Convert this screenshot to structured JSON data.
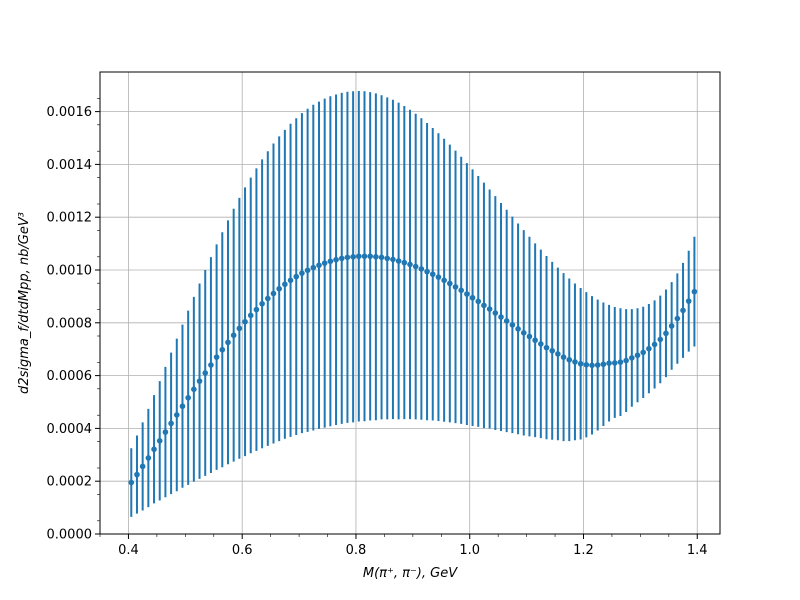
{
  "chart_data": {
    "type": "scatter",
    "title": "",
    "xlabel": "M(π⁺, π⁻), GeV",
    "ylabel": "d2sigma_f/dtdMpp, nb/GeV³",
    "xlim": [
      0.35,
      1.44
    ],
    "ylim": [
      0.0,
      0.00175
    ],
    "xticks": [
      0.4,
      0.6,
      0.8,
      1.0,
      1.2,
      1.4
    ],
    "xtick_labels": [
      "0.4",
      "0.6",
      "0.8",
      "1.0",
      "1.2",
      "1.4"
    ],
    "yticks": [
      0,
      0.0002,
      0.0004,
      0.0006,
      0.0008,
      0.001,
      0.0012,
      0.0014,
      0.0016
    ],
    "ytick_labels": [
      "0.0000",
      "0.0002",
      "0.0004",
      "0.0006",
      "0.0008",
      "0.0010",
      "0.0012",
      "0.0014",
      "0.0016"
    ],
    "grid": true,
    "color": "#1f77b4",
    "series": [
      {
        "x": [
          0.405,
          0.415,
          0.425,
          0.435,
          0.445,
          0.455,
          0.465,
          0.475,
          0.485,
          0.495,
          0.505,
          0.515,
          0.525,
          0.535,
          0.545,
          0.555,
          0.565,
          0.575,
          0.585,
          0.595,
          0.605,
          0.615,
          0.625,
          0.635,
          0.645,
          0.655,
          0.665,
          0.675,
          0.685,
          0.695,
          0.705,
          0.715,
          0.725,
          0.735,
          0.745,
          0.755,
          0.765,
          0.775,
          0.785,
          0.795,
          0.805,
          0.815,
          0.825,
          0.835,
          0.845,
          0.855,
          0.865,
          0.875,
          0.885,
          0.895,
          0.905,
          0.915,
          0.925,
          0.935,
          0.945,
          0.955,
          0.965,
          0.975,
          0.985,
          0.995,
          1.005,
          1.015,
          1.025,
          1.035,
          1.045,
          1.055,
          1.065,
          1.075,
          1.085,
          1.095,
          1.105,
          1.115,
          1.125,
          1.135,
          1.145,
          1.155,
          1.165,
          1.175,
          1.185,
          1.195,
          1.205,
          1.215,
          1.225,
          1.235,
          1.245,
          1.255,
          1.265,
          1.275,
          1.285,
          1.295,
          1.305,
          1.315,
          1.325,
          1.335,
          1.345,
          1.355,
          1.365,
          1.375,
          1.385,
          1.395
        ],
        "y": [
          0.000195,
          0.000225,
          0.000256,
          0.000288,
          0.000321,
          0.000353,
          0.000386,
          0.000419,
          0.000451,
          0.000484,
          0.000516,
          0.000548,
          0.000579,
          0.00061,
          0.00064,
          0.00067,
          0.000698,
          0.000726,
          0.000753,
          0.000779,
          0.000804,
          0.000828,
          0.00085,
          0.000872,
          0.000892,
          0.000911,
          0.000929,
          0.000946,
          0.000961,
          0.000975,
          0.000988,
          0.000999,
          0.001009,
          0.001018,
          0.001026,
          0.001033,
          0.001039,
          0.001044,
          0.001048,
          0.00105,
          0.001052,
          0.001052,
          0.001052,
          0.00105,
          0.001048,
          0.001044,
          0.00104,
          0.001034,
          0.001028,
          0.001021,
          0.001013,
          0.001004,
          0.000994,
          0.000984,
          0.000973,
          0.000961,
          0.000949,
          0.000936,
          0.000923,
          0.000909,
          0.000895,
          0.000881,
          0.000866,
          0.000852,
          0.000837,
          0.000822,
          0.000807,
          0.000792,
          0.000777,
          0.000762,
          0.000748,
          0.000734,
          0.00072,
          0.000706,
          0.000694,
          0.000682,
          0.00067,
          0.00066,
          0.000652,
          0.000645,
          0.000641,
          0.000639,
          0.00064,
          0.000643,
          0.000647,
          0.000648,
          0.000651,
          0.000657,
          0.000667,
          0.000677,
          0.000688,
          0.000702,
          0.000718,
          0.000737,
          0.00076,
          0.000788,
          0.000816,
          0.000847,
          0.000882,
          0.000918
        ],
        "y_upper": [
          0.000325,
          0.000373,
          0.000423,
          0.000474,
          0.000526,
          0.000579,
          0.000633,
          0.000687,
          0.00074,
          0.000793,
          0.000846,
          0.000898,
          0.000949,
          0.001,
          0.001049,
          0.001097,
          0.001143,
          0.001188,
          0.001232,
          0.001273,
          0.001313,
          0.00135,
          0.001385,
          0.001419,
          0.00145,
          0.001479,
          0.001506,
          0.001531,
          0.001554,
          0.001575,
          0.001594,
          0.001611,
          0.001626,
          0.001638,
          0.001649,
          0.001658,
          0.001665,
          0.001671,
          0.001675,
          0.001677,
          0.001678,
          0.001677,
          0.001674,
          0.001669,
          0.001662,
          0.001654,
          0.001645,
          0.001634,
          0.001621,
          0.001607,
          0.001592,
          0.001575,
          0.001557,
          0.001538,
          0.001518,
          0.001497,
          0.001475,
          0.001452,
          0.001429,
          0.001405,
          0.001381,
          0.001356,
          0.001331,
          0.001305,
          0.00128,
          0.001254,
          0.001228,
          0.001202,
          0.001176,
          0.001151,
          0.001126,
          0.001101,
          0.001077,
          0.001053,
          0.001031,
          0.001009,
          0.000988,
          0.000968,
          0.000949,
          0.000932,
          0.000916,
          0.000901,
          0.000888,
          0.000877,
          0.000868,
          0.00086,
          0.000855,
          0.000852,
          0.000852,
          0.000855,
          0.000861,
          0.000871,
          0.000885,
          0.000903,
          0.000926,
          0.000954,
          0.000987,
          0.001027,
          0.001073,
          0.001126
        ],
        "y_lower": [
          6.5e-05,
          7.7e-05,
          8.9e-05,
          0.000102,
          0.000116,
          0.000127,
          0.000139,
          0.000151,
          0.000162,
          0.000175,
          0.000186,
          0.000198,
          0.000209,
          0.00022,
          0.000231,
          0.000243,
          0.000253,
          0.000264,
          0.000274,
          0.000285,
          0.000295,
          0.000306,
          0.000315,
          0.000325,
          0.000334,
          0.000343,
          0.000352,
          0.000361,
          0.000368,
          0.000375,
          0.000382,
          0.000387,
          0.000392,
          0.000398,
          0.000403,
          0.000408,
          0.000413,
          0.000417,
          0.000421,
          0.000423,
          0.000426,
          0.000427,
          0.00043,
          0.000431,
          0.000434,
          0.000434,
          0.000435,
          0.000434,
          0.000435,
          0.000435,
          0.000434,
          0.000433,
          0.000431,
          0.00043,
          0.000428,
          0.000425,
          0.000423,
          0.00042,
          0.000417,
          0.000413,
          0.000409,
          0.000406,
          0.000401,
          0.000399,
          0.000394,
          0.00039,
          0.000386,
          0.000382,
          0.000378,
          0.000373,
          0.00037,
          0.000367,
          0.000363,
          0.000359,
          0.000357,
          0.000355,
          0.000352,
          0.000352,
          0.000355,
          0.000358,
          0.000366,
          0.000377,
          0.000392,
          0.000409,
          0.000426,
          0.00044,
          0.000447,
          0.000462,
          0.000482,
          0.000499,
          0.000515,
          0.000533,
          0.000551,
          0.000571,
          0.000594,
          0.000622,
          0.000645,
          0.000667,
          0.000691,
          0.00071
        ]
      }
    ]
  }
}
